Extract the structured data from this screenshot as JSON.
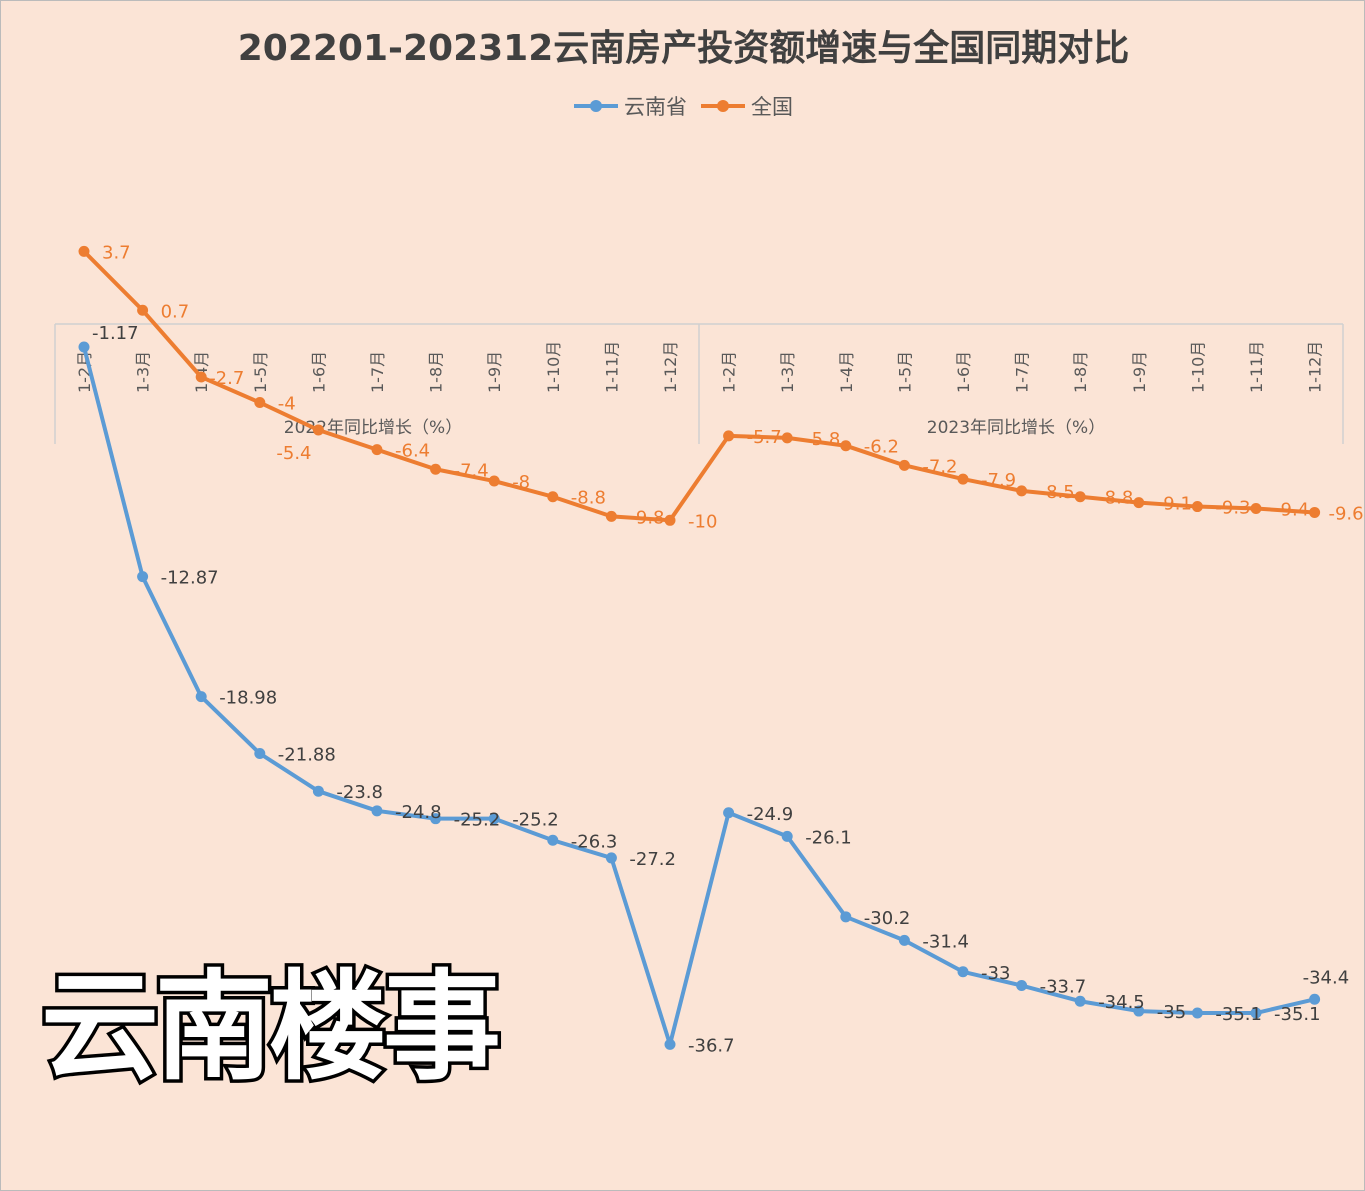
{
  "chart_data": {
    "type": "line",
    "title": "202201-202312云南房产投资额增速与全国同期对比",
    "xlabel": "",
    "ylabel": "",
    "legend_position": "top",
    "group_labels": [
      "2022年同比增长（%）",
      "2023年同比增长（%）"
    ],
    "categories": [
      "1-2月",
      "1-3月",
      "1-4月",
      "1-5月",
      "1-6月",
      "1-7月",
      "1-8月",
      "1-9月",
      "1-10月",
      "1-11月",
      "1-12月",
      "1-2月",
      "1-3月",
      "1-4月",
      "1-5月",
      "1-6月",
      "1-7月",
      "1-8月",
      "1-9月",
      "1-10月",
      "1-11月",
      "1-12月"
    ],
    "series": [
      {
        "name": "云南省",
        "color": "#5B9BD5",
        "values": [
          -1.17,
          -12.87,
          -18.98,
          -21.88,
          -23.8,
          -24.8,
          -25.2,
          -25.2,
          -26.3,
          -27.2,
          -36.7,
          -24.9,
          -26.1,
          -30.2,
          -31.4,
          -33,
          -33.7,
          -34.5,
          -35,
          -35.1,
          -35.1,
          -34.4
        ]
      },
      {
        "name": "全国",
        "color": "#ED7D31",
        "values": [
          3.7,
          0.7,
          -2.7,
          -4,
          -5.4,
          -6.4,
          -7.4,
          -8,
          -8.8,
          -9.8,
          -10,
          -5.7,
          -5.8,
          -6.2,
          -7.2,
          -7.9,
          -8.5,
          -8.8,
          -9.1,
          -9.3,
          -9.4,
          -9.6
        ]
      }
    ],
    "ylim": [
      -45,
      5
    ],
    "grid": false
  },
  "watermark": "云南楼事"
}
